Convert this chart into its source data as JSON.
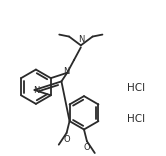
{
  "background_color": "#ffffff",
  "line_color": "#2a2a2a",
  "line_width": 1.3,
  "fig_width": 1.66,
  "fig_height": 1.56,
  "dpi": 100,
  "hcl1": [
    128,
    120
  ],
  "hcl2": [
    128,
    88
  ],
  "hcl_fontsize": 7.5
}
